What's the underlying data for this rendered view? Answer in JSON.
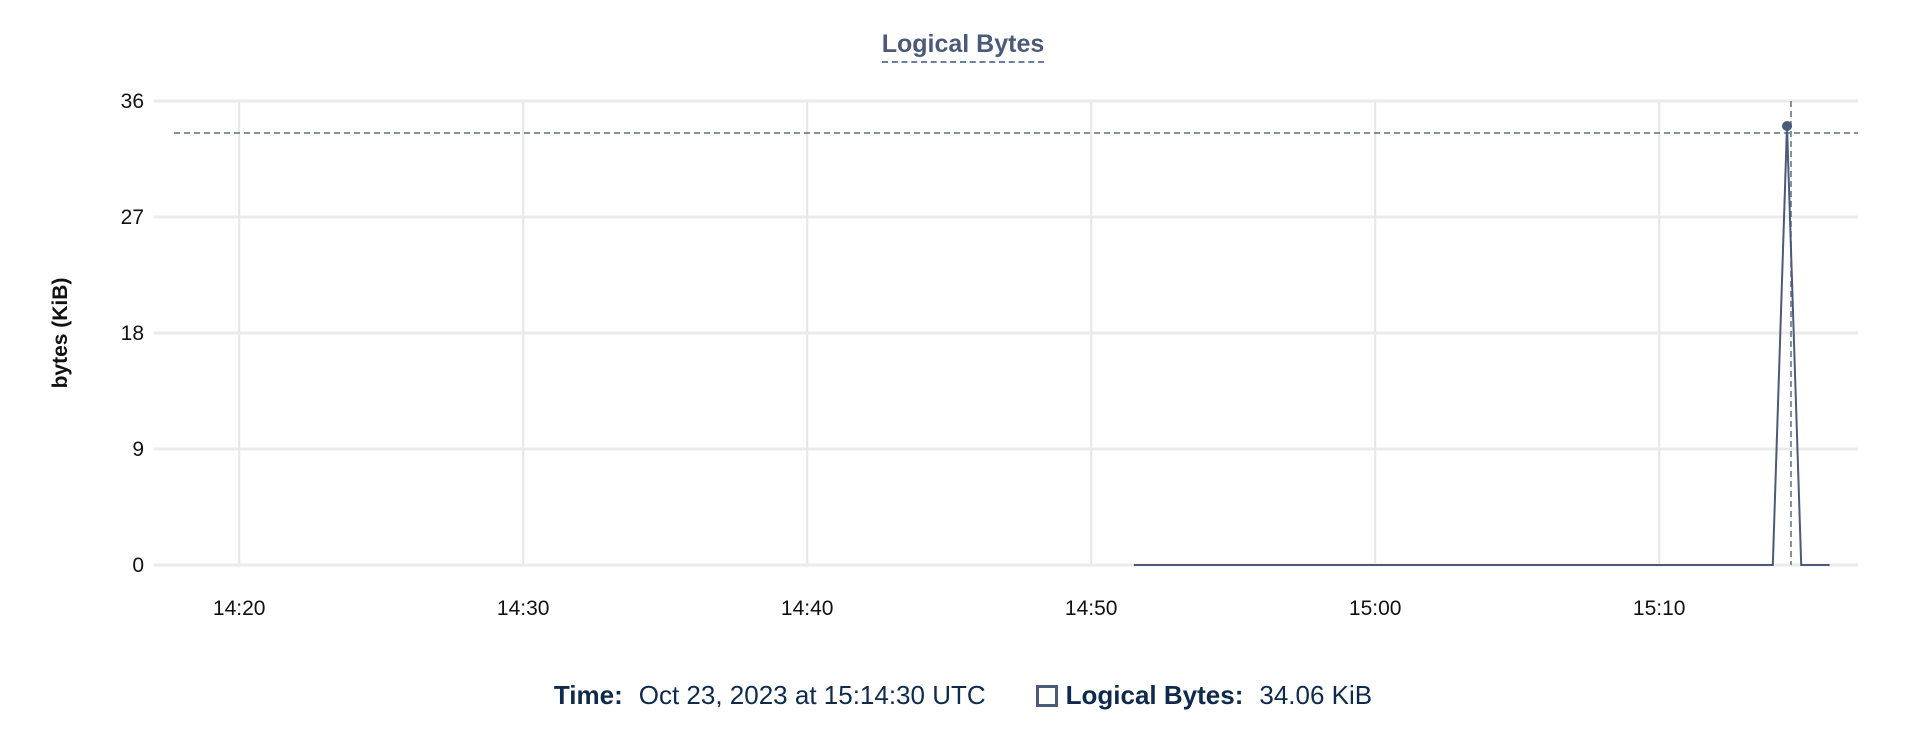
{
  "chart_data": {
    "type": "line",
    "title": "Logical Bytes",
    "ylabel": "bytes (KiB)",
    "xlabel": "",
    "ylim": [
      0,
      36
    ],
    "yticks": [
      "0",
      "9",
      "18",
      "27",
      "36"
    ],
    "xlim": [
      "14:17",
      "15:17"
    ],
    "xticks": [
      "14:20",
      "14:30",
      "14:40",
      "14:50",
      "15:00",
      "15:10"
    ],
    "grid": true,
    "series": [
      {
        "name": "Logical Bytes",
        "color": "#4a5a78",
        "x": [
          "14:51:30",
          "15:14:00",
          "15:14:30",
          "15:15:00",
          "15:16:00"
        ],
        "y": [
          0,
          0,
          34.06,
          0,
          0
        ]
      }
    ],
    "hover": {
      "x": "15:14:30",
      "y": 34.06
    }
  },
  "legend": {
    "time_label": "Time:",
    "time_value": "Oct 23, 2023 at 15:14:30 UTC",
    "series_label": "Logical Bytes:",
    "series_value": "34.06 KiB"
  }
}
